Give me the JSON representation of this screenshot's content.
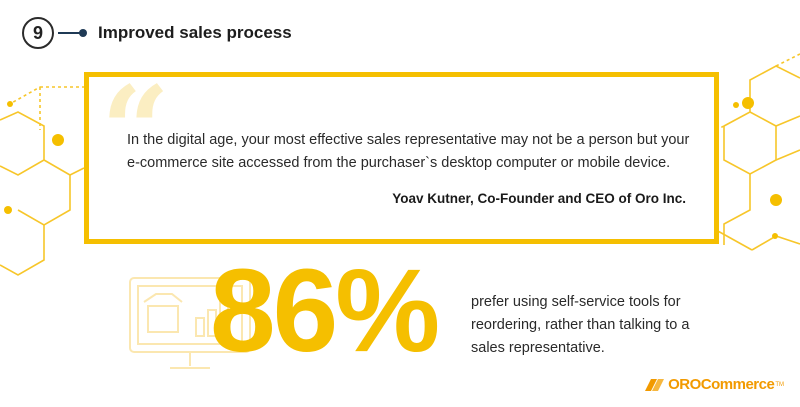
{
  "header": {
    "number": "9",
    "title": "Improved sales process"
  },
  "quote": {
    "text": "In the digital age, your most effective sales representative may not be a person but your e-commerce site accessed from the purchaser`s desktop computer or mobile device.",
    "author": "Yoav Kutner, Co-Founder and CEO of Oro Inc."
  },
  "stat": {
    "value": "86%",
    "description": "prefer using self-service tools for reordering, rather than talking to a sales representative."
  },
  "logo": {
    "text": "OROCommerce",
    "trademark": "TM"
  },
  "colors": {
    "accent": "#f5bf00",
    "accent_light": "#fbeec2",
    "logo": "#f29a00",
    "header_line": "#1f3a55",
    "text": "#2a2a2a"
  },
  "icons": [
    "quote-mark-icon",
    "hexagon-network-decoration",
    "desktop-store-illustration",
    "orocommerce-logo-icon"
  ]
}
